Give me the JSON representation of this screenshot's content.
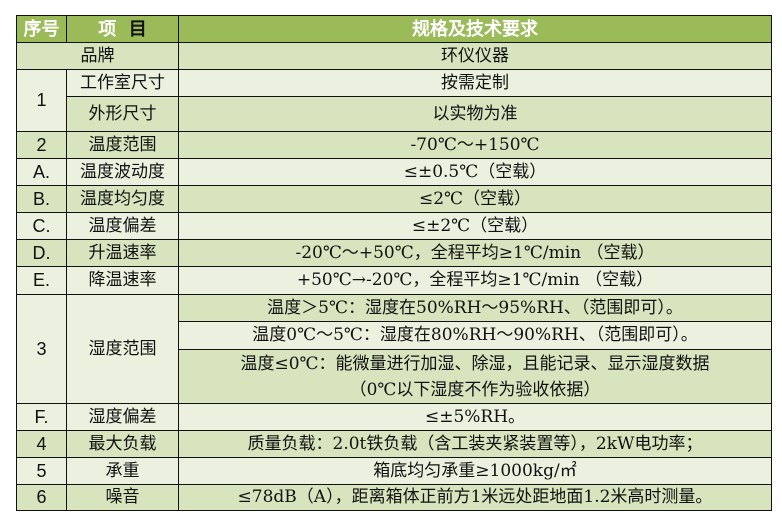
{
  "header": {
    "col1": "序号",
    "col2a": "项",
    "col2b": "目",
    "col3": "规格及技术要求"
  },
  "colors": {
    "header": "#9bbb59",
    "row_dark": "#d7e4bd",
    "row_light": "#ebf1de"
  },
  "brand": {
    "label": "品牌",
    "value": "环仪仪器"
  },
  "rows": [
    {
      "no": "1",
      "item": "工作室尺寸",
      "spec": "按需定制"
    },
    {
      "item": "外形尺寸",
      "spec": "以实物为准"
    },
    {
      "no": "2",
      "item": "温度范围",
      "spec": "-70℃～+150℃"
    },
    {
      "no": "A.",
      "item": "温度波动度",
      "spec": "≤±0.5℃（空载）"
    },
    {
      "no": "B.",
      "item": "温度均匀度",
      "spec": "≤2℃（空载）"
    },
    {
      "no": "C.",
      "item": "温度偏差",
      "spec": "≤±2℃（空载）"
    },
    {
      "no": "D.",
      "item": "升温速率",
      "spec": "-20℃～+50℃，全程平均≥1℃/min （空载）"
    },
    {
      "no": "E.",
      "item": "降温速率",
      "spec": "+50℃→-20℃，全程平均≥1℃/min （空载）"
    },
    {
      "no": "3",
      "item": "湿度范围",
      "spec": "温度＞5℃：湿度在50%RH～95%RH、（范围即可）。"
    },
    {
      "spec": "温度0℃～5℃：湿度在80%RH～90%RH、（范围即可）。"
    },
    {
      "spec": "温度≤0℃：能微量进行加湿、除湿，且能记录、显示湿度数据",
      "spec2": "（0℃以下湿度不作为验收依据）"
    },
    {
      "no": "F.",
      "item": "湿度偏差",
      "spec": "≤±5%RH。"
    },
    {
      "no": "4",
      "item": "最大负载",
      "spec": "质量负载：2.0t铁负载（含工装夹紧装置等），2kW电功率；"
    },
    {
      "no": "5",
      "item": "承重",
      "spec": "箱底均匀承重≥1000kg/㎡"
    },
    {
      "no": "6",
      "item": "噪音",
      "spec": "≤78dB（A），距离箱体正前方1米远处距地面1.2米高时测量。"
    }
  ]
}
